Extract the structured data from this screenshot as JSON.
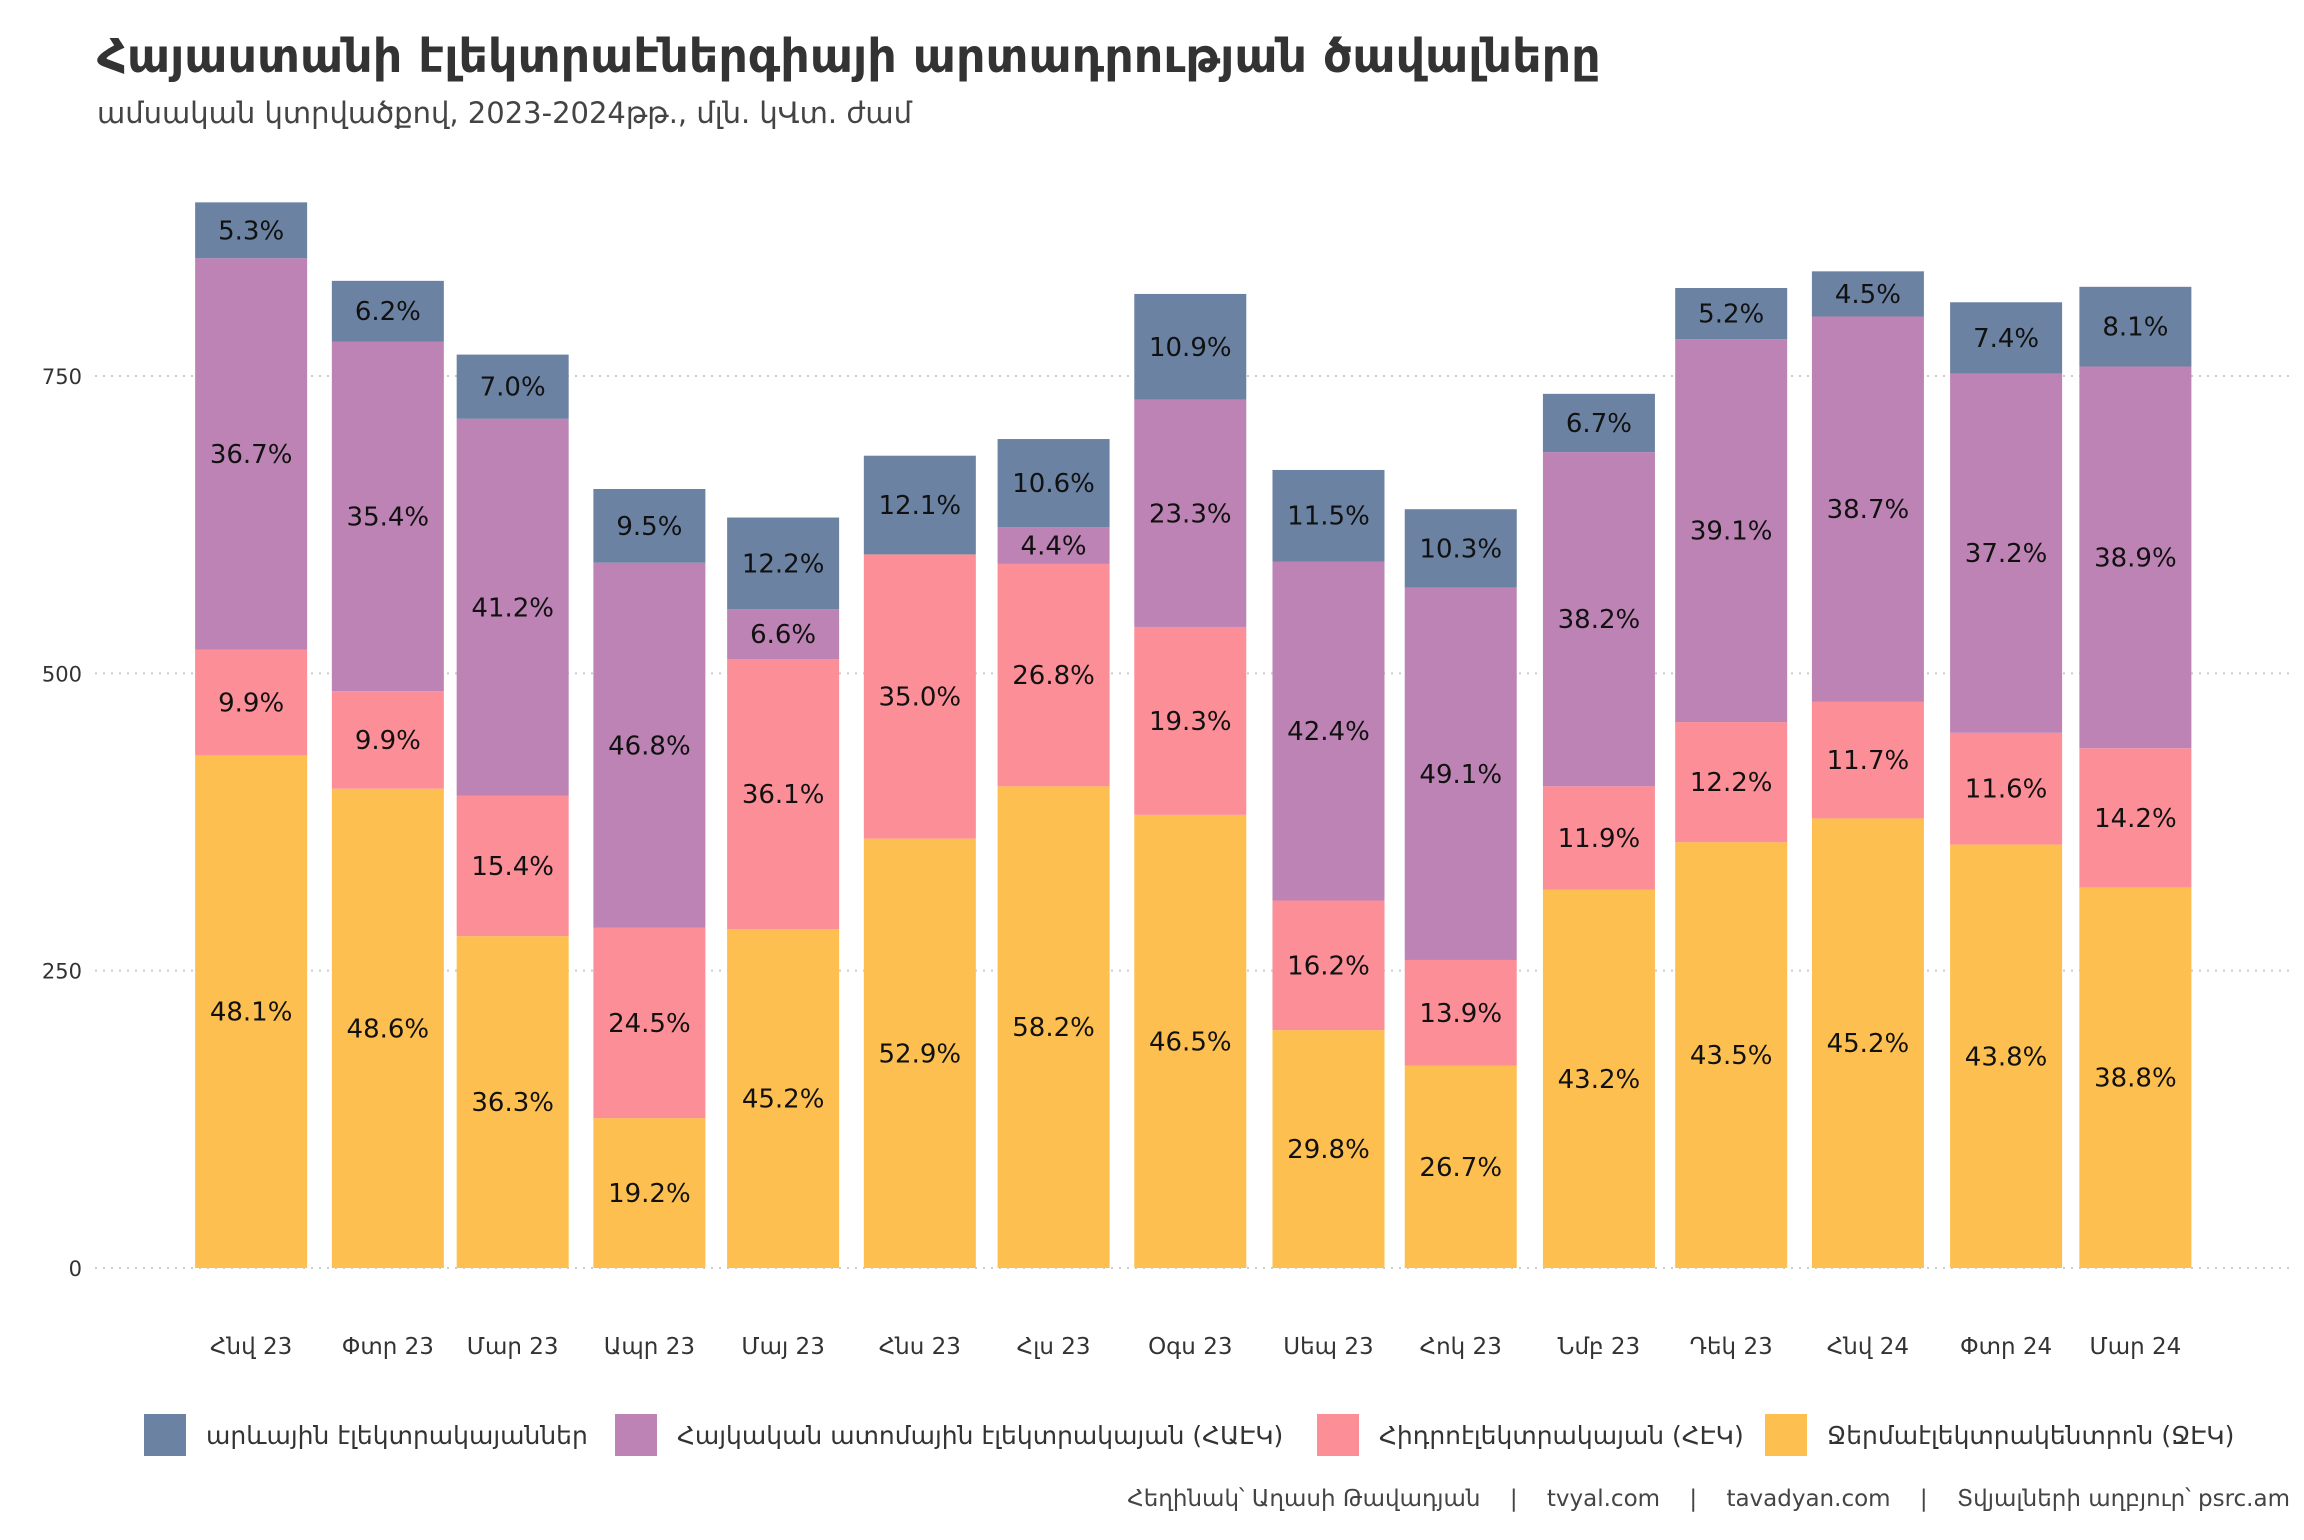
{
  "chart_data": {
    "type": "bar",
    "stacked": true,
    "title": "Հայաստանի էլեկտրաէներգիայի արտադրության ծավալները",
    "subtitle": "ամսական կտրվածքով, 2023-2024թթ., մլն. կՎտ. ժամ",
    "xlabel": "",
    "ylabel": "",
    "ylim": [
      0,
      900
    ],
    "yticks": [
      0,
      250,
      500,
      750
    ],
    "grid": "horizontal dotted",
    "legend_position": "bottom",
    "categories": [
      "Հնվ 23",
      "Փտր 23",
      "Մար 23",
      "Ապր 23",
      "Մայ 23",
      "Հնս 23",
      "Հլս 23",
      "Օգս 23",
      "Սեպ 23",
      "Հոկ 23",
      "Նմբ 23",
      "Դեկ 23",
      "Հնվ 24",
      "Փտր 24",
      "Մար 24"
    ],
    "series": [
      {
        "name": "Ջերմաէլեկտրակենտրոն (ՋԷԿ)",
        "color": "#FDBF4F",
        "values": [
          431,
          403,
          279,
          126,
          285,
          361,
          405,
          381,
          200,
          170,
          318,
          358,
          378,
          356,
          320
        ],
        "labels": [
          "48.1%",
          "48.6%",
          "36.3%",
          "19.2%",
          "45.2%",
          "52.9%",
          "58.2%",
          "46.5%",
          "29.8%",
          "26.7%",
          "43.2%",
          "43.5%",
          "45.2%",
          "43.8%",
          "38.8%"
        ]
      },
      {
        "name": "Հիդրոէլեկտրակայան (ՀԷԿ)",
        "color": "#FB8E97",
        "values": [
          89,
          82,
          118,
          160,
          227,
          239,
          187,
          158,
          109,
          89,
          87,
          101,
          98,
          94,
          117
        ],
        "labels": [
          "9.9%",
          "9.9%",
          "15.4%",
          "24.5%",
          "36.1%",
          "35.0%",
          "26.8%",
          "19.3%",
          "16.2%",
          "13.9%",
          "11.9%",
          "12.2%",
          "11.7%",
          "11.6%",
          "14.2%"
        ]
      },
      {
        "name": "Հայկական ատոմային էլեկտրակայան (ՀԱԷԿ)",
        "color": "#BC83B4",
        "values": [
          329,
          294,
          317,
          307,
          42,
          0,
          31,
          191,
          285,
          313,
          281,
          322,
          324,
          302,
          321
        ],
        "labels": [
          "36.7%",
          "35.4%",
          "41.2%",
          "46.8%",
          "6.6%",
          "",
          "4.4%",
          "23.3%",
          "42.4%",
          "49.1%",
          "38.2%",
          "39.1%",
          "38.7%",
          "37.2%",
          "38.9%"
        ]
      },
      {
        "name": "արևային էլեկտրակայաններ",
        "color": "#6B82A3",
        "values": [
          47,
          51,
          54,
          62,
          77,
          83,
          74,
          89,
          77,
          66,
          49,
          43,
          38,
          60,
          67
        ],
        "labels": [
          "5.3%",
          "6.2%",
          "7.0%",
          "9.5%",
          "12.2%",
          "12.1%",
          "10.6%",
          "10.9%",
          "11.5%",
          "10.3%",
          "6.7%",
          "5.2%",
          "4.5%",
          "7.4%",
          "8.1%"
        ]
      }
    ],
    "legend_order": [
      3,
      2,
      1,
      0
    ]
  },
  "footer": {
    "author": "Հեղինակ՝ Աղասի Թավադյան",
    "site1": "tvyal.com",
    "site2": "tavadyan.com",
    "source": "Տվյալների աղբյուր՝ psrc.am",
    "separator": "|"
  }
}
